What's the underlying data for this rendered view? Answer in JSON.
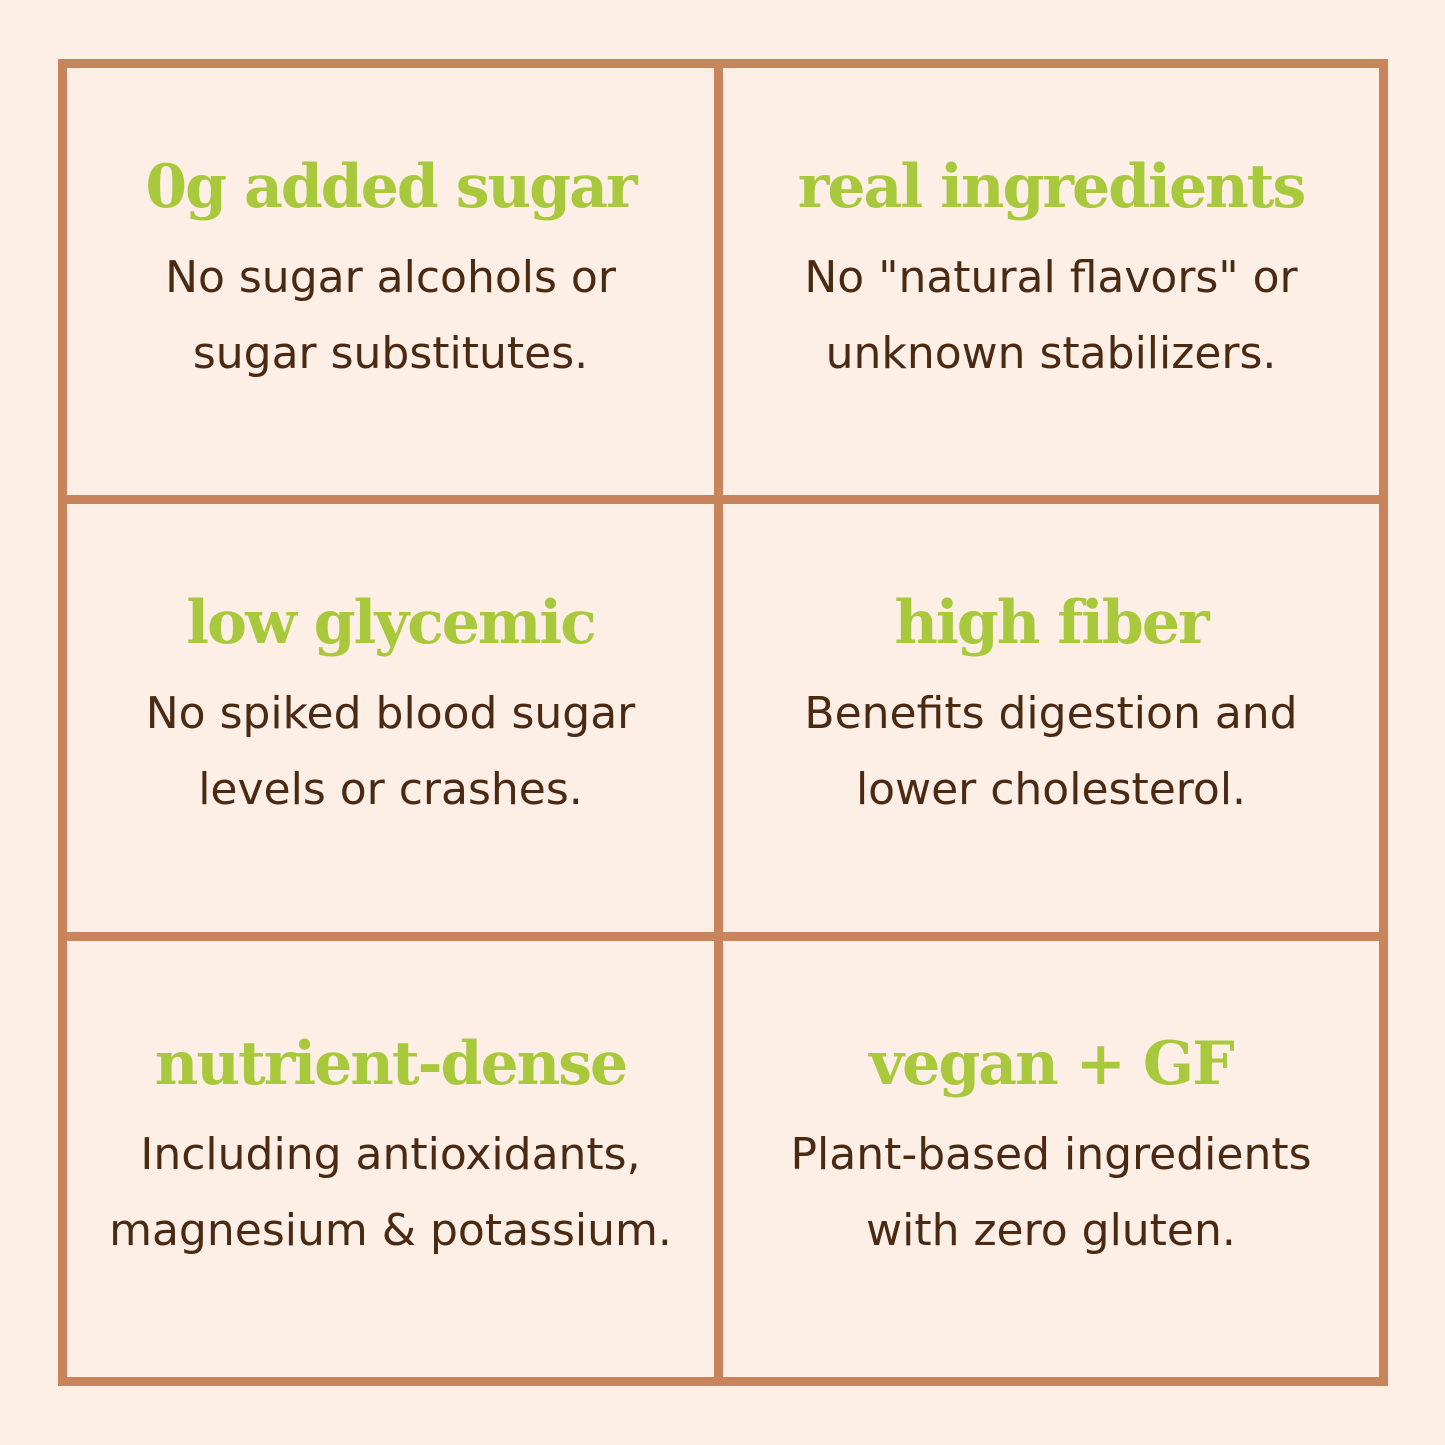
{
  "cells": [
    {
      "title": "0g added sugar",
      "lines": [
        "No sugar alcohols or",
        "sugar substitutes."
      ]
    },
    {
      "title": "real ingredients",
      "lines": [
        "No \"natural flavors\" or",
        "unknown stabilizers."
      ]
    },
    {
      "title": "low glycemic",
      "lines": [
        "No spiked blood sugar",
        "levels or crashes."
      ]
    },
    {
      "title": "high fiber",
      "lines": [
        "Benefits digestion and",
        "lower cholesterol."
      ]
    },
    {
      "title": "nutrient-dense",
      "lines": [
        "Including antioxidants,",
        "magnesium & potassium."
      ]
    },
    {
      "title": "vegan + GF",
      "lines": [
        "Plant-based ingredients",
        "with zero gluten."
      ]
    }
  ]
}
